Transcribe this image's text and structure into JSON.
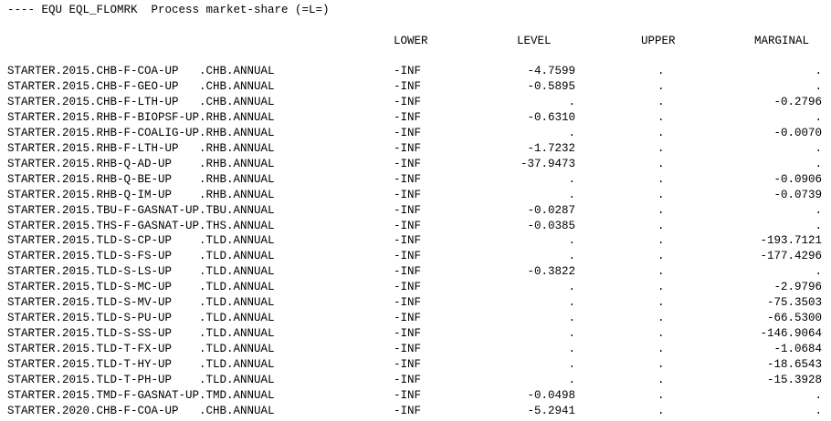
{
  "title": "---- EQU EQL_FLOMRK  Process market-share (=L=)",
  "headers": {
    "lower": "LOWER",
    "level": "LEVEL",
    "upper": "UPPER",
    "marginal": "MARGINAL"
  },
  "rows": [
    {
      "name": "STARTER.2015.CHB-F-COA-UP   .CHB.ANNUAL",
      "lower": "-INF",
      "level": "-4.7599",
      "upper": ".",
      "marginal": "."
    },
    {
      "name": "STARTER.2015.CHB-F-GEO-UP   .CHB.ANNUAL",
      "lower": "-INF",
      "level": "-0.5895",
      "upper": ".",
      "marginal": "."
    },
    {
      "name": "STARTER.2015.CHB-F-LTH-UP   .CHB.ANNUAL",
      "lower": "-INF",
      "level": ".",
      "upper": ".",
      "marginal": "-0.2796"
    },
    {
      "name": "STARTER.2015.RHB-F-BIOPSF-UP.RHB.ANNUAL",
      "lower": "-INF",
      "level": "-0.6310",
      "upper": ".",
      "marginal": "."
    },
    {
      "name": "STARTER.2015.RHB-F-COALIG-UP.RHB.ANNUAL",
      "lower": "-INF",
      "level": ".",
      "upper": ".",
      "marginal": "-0.0070"
    },
    {
      "name": "STARTER.2015.RHB-F-LTH-UP   .RHB.ANNUAL",
      "lower": "-INF",
      "level": "-1.7232",
      "upper": ".",
      "marginal": "."
    },
    {
      "name": "STARTER.2015.RHB-Q-AD-UP    .RHB.ANNUAL",
      "lower": "-INF",
      "level": "-37.9473",
      "upper": ".",
      "marginal": "."
    },
    {
      "name": "STARTER.2015.RHB-Q-BE-UP    .RHB.ANNUAL",
      "lower": "-INF",
      "level": ".",
      "upper": ".",
      "marginal": "-0.0906"
    },
    {
      "name": "STARTER.2015.RHB-Q-IM-UP    .RHB.ANNUAL",
      "lower": "-INF",
      "level": ".",
      "upper": ".",
      "marginal": "-0.0739"
    },
    {
      "name": "STARTER.2015.TBU-F-GASNAT-UP.TBU.ANNUAL",
      "lower": "-INF",
      "level": "-0.0287",
      "upper": ".",
      "marginal": "."
    },
    {
      "name": "STARTER.2015.THS-F-GASNAT-UP.THS.ANNUAL",
      "lower": "-INF",
      "level": "-0.0385",
      "upper": ".",
      "marginal": "."
    },
    {
      "name": "STARTER.2015.TLD-S-CP-UP    .TLD.ANNUAL",
      "lower": "-INF",
      "level": ".",
      "upper": ".",
      "marginal": "-193.7121"
    },
    {
      "name": "STARTER.2015.TLD-S-FS-UP    .TLD.ANNUAL",
      "lower": "-INF",
      "level": ".",
      "upper": ".",
      "marginal": "-177.4296"
    },
    {
      "name": "STARTER.2015.TLD-S-LS-UP    .TLD.ANNUAL",
      "lower": "-INF",
      "level": "-0.3822",
      "upper": ".",
      "marginal": "."
    },
    {
      "name": "STARTER.2015.TLD-S-MC-UP    .TLD.ANNUAL",
      "lower": "-INF",
      "level": ".",
      "upper": ".",
      "marginal": "-2.9796"
    },
    {
      "name": "STARTER.2015.TLD-S-MV-UP    .TLD.ANNUAL",
      "lower": "-INF",
      "level": ".",
      "upper": ".",
      "marginal": "-75.3503"
    },
    {
      "name": "STARTER.2015.TLD-S-PU-UP    .TLD.ANNUAL",
      "lower": "-INF",
      "level": ".",
      "upper": ".",
      "marginal": "-66.5300"
    },
    {
      "name": "STARTER.2015.TLD-S-SS-UP    .TLD.ANNUAL",
      "lower": "-INF",
      "level": ".",
      "upper": ".",
      "marginal": "-146.9064"
    },
    {
      "name": "STARTER.2015.TLD-T-FX-UP    .TLD.ANNUAL",
      "lower": "-INF",
      "level": ".",
      "upper": ".",
      "marginal": "-1.0684"
    },
    {
      "name": "STARTER.2015.TLD-T-HY-UP    .TLD.ANNUAL",
      "lower": "-INF",
      "level": ".",
      "upper": ".",
      "marginal": "-18.6543"
    },
    {
      "name": "STARTER.2015.TLD-T-PH-UP    .TLD.ANNUAL",
      "lower": "-INF",
      "level": ".",
      "upper": ".",
      "marginal": "-15.3928"
    },
    {
      "name": "STARTER.2015.TMD-F-GASNAT-UP.TMD.ANNUAL",
      "lower": "-INF",
      "level": "-0.0498",
      "upper": ".",
      "marginal": "."
    },
    {
      "name": "STARTER.2020.CHB-F-COA-UP   .CHB.ANNUAL",
      "lower": "-INF",
      "level": "-5.2941",
      "upper": ".",
      "marginal": "."
    }
  ]
}
